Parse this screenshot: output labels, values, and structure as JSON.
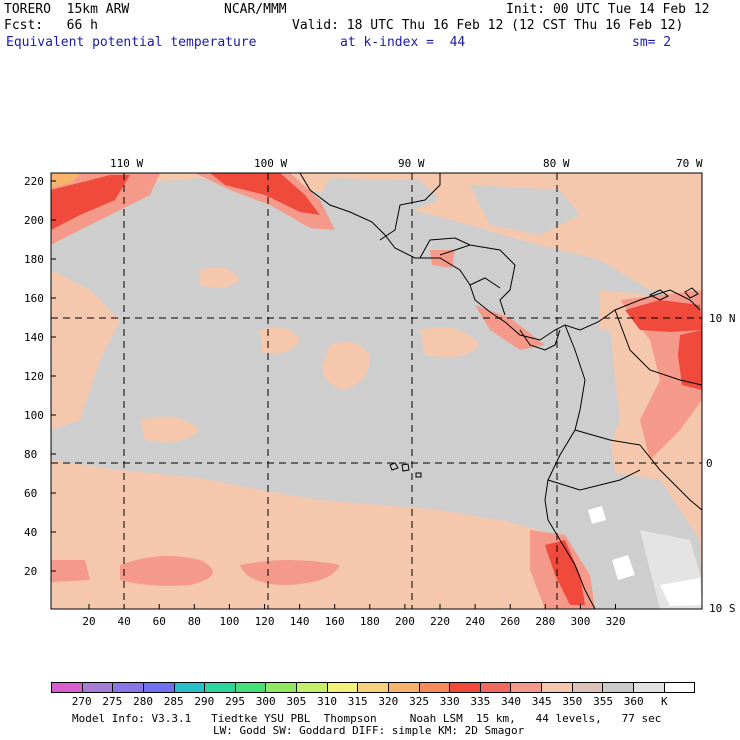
{
  "header": {
    "model": "TORERO  15km ARW",
    "org": "NCAR/MMM",
    "init": "Init: 00 UTC Tue 14 Feb 12",
    "fcst": "Fcst:   66 h",
    "valid": "Valid: 18 UTC Thu 16 Feb 12 (12 CST Thu 16 Feb 12)",
    "field": "Equivalent potential temperature",
    "level": "at k-index =  44",
    "smooth": "sm= 2"
  },
  "top_lon_labels": [
    "110 W",
    "100 W",
    "90 W",
    "80 W",
    "70 W"
  ],
  "right_lat_labels": [
    "10 N",
    "0",
    "10 S"
  ],
  "y_ticks": [
    "220",
    "200",
    "180",
    "160",
    "140",
    "120",
    "100",
    "80",
    "60",
    "40",
    "20"
  ],
  "x_ticks": [
    "20",
    "40",
    "60",
    "80",
    "100",
    "120",
    "140",
    "160",
    "180",
    "200",
    "220",
    "240",
    "260",
    "280",
    "300",
    "320"
  ],
  "legend": {
    "colors": [
      "#d95fd0",
      "#a77ed6",
      "#8877e6",
      "#6f6ff0",
      "#27c0c8",
      "#2bd6a0",
      "#45e07a",
      "#8fe860",
      "#c4ef6a",
      "#f0f07a",
      "#f6d27a",
      "#f7b26c",
      "#f58a5a",
      "#ef4a3c",
      "#f2695e",
      "#f59a8a",
      "#f5c8ae",
      "#ddc3b7",
      "#cacaca",
      "#e2e2e2",
      "#ffffff"
    ],
    "labels": [
      "270",
      "275",
      "280",
      "285",
      "290",
      "295",
      "300",
      "305",
      "310",
      "315",
      "320",
      "325",
      "330",
      "335",
      "340",
      "345",
      "350",
      "355",
      "360",
      "K"
    ]
  },
  "footer": {
    "line1": "Model Info: V3.3.1   Tiedtke YSU PBL  Thompson     Noah LSM  15 km,   44 levels,   77 sec",
    "line2": "LW: Godd SW: Goddard DIFF: simple KM: 2D Smagor"
  },
  "map_colors": {
    "base": "#cecece",
    "tan": "#f5c8ae",
    "salmon": "#f59a8a",
    "red": "#ef4a3c",
    "orange": "#f7b26c",
    "white": "#ffffff",
    "light_gray": "#e4e4e4"
  }
}
